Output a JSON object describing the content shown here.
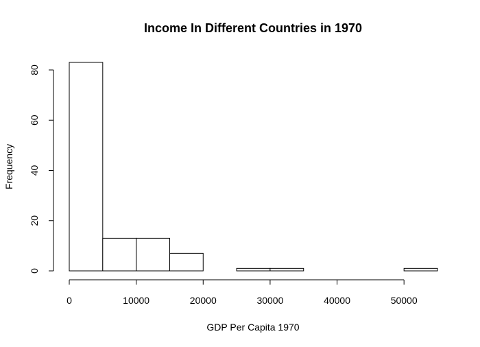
{
  "chart_data": {
    "type": "histogram",
    "title": "Income In Different Countries in 1970",
    "xlabel": "GDP Per Capita 1970",
    "ylabel": "Frequency",
    "bins": [
      {
        "start": 0,
        "end": 5000,
        "count": 83
      },
      {
        "start": 5000,
        "end": 10000,
        "count": 13
      },
      {
        "start": 10000,
        "end": 15000,
        "count": 13
      },
      {
        "start": 15000,
        "end": 20000,
        "count": 7
      },
      {
        "start": 20000,
        "end": 25000,
        "count": 0
      },
      {
        "start": 25000,
        "end": 30000,
        "count": 1
      },
      {
        "start": 30000,
        "end": 35000,
        "count": 1
      },
      {
        "start": 35000,
        "end": 40000,
        "count": 0
      },
      {
        "start": 40000,
        "end": 45000,
        "count": 0
      },
      {
        "start": 45000,
        "end": 50000,
        "count": 0
      },
      {
        "start": 50000,
        "end": 55000,
        "count": 1
      }
    ],
    "xticks": [
      0,
      10000,
      20000,
      30000,
      40000,
      50000
    ],
    "yticks": [
      0,
      20,
      40,
      60,
      80
    ],
    "xlim": [
      0,
      55000
    ],
    "ylim": [
      0,
      83
    ],
    "grid": false
  }
}
